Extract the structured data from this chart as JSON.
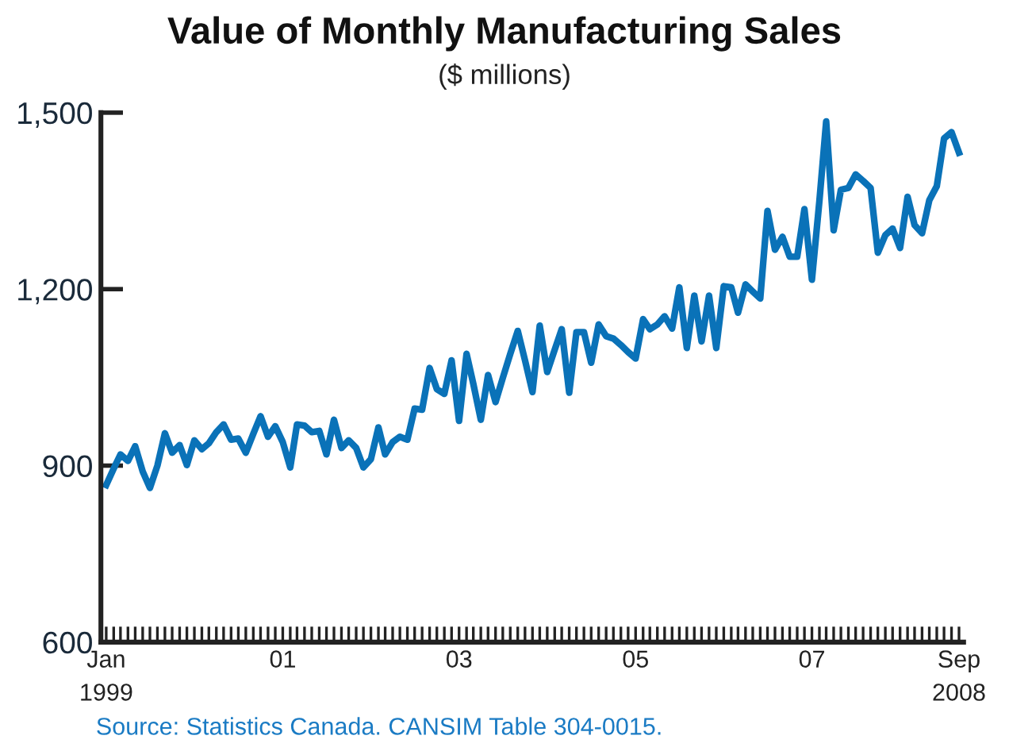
{
  "chart_data": {
    "type": "line",
    "title": "Value of Monthly Manufacturing Sales",
    "subtitle": "($ millions)",
    "annotations": [
      "Source: Statistics Canada. CANSIM Table 304-0015."
    ],
    "x": [
      "1999-01",
      "1999-02",
      "1999-03",
      "1999-04",
      "1999-05",
      "1999-06",
      "1999-07",
      "1999-08",
      "1999-09",
      "1999-10",
      "1999-11",
      "1999-12",
      "2000-01",
      "2000-02",
      "2000-03",
      "2000-04",
      "2000-05",
      "2000-06",
      "2000-07",
      "2000-08",
      "2000-09",
      "2000-10",
      "2000-11",
      "2000-12",
      "2001-01",
      "2001-02",
      "2001-03",
      "2001-04",
      "2001-05",
      "2001-06",
      "2001-07",
      "2001-08",
      "2001-09",
      "2001-10",
      "2001-11",
      "2001-12",
      "2002-01",
      "2002-02",
      "2002-03",
      "2002-04",
      "2002-05",
      "2002-06",
      "2002-07",
      "2002-08",
      "2002-09",
      "2002-10",
      "2002-11",
      "2002-12",
      "2003-01",
      "2003-02",
      "2003-03",
      "2003-04",
      "2003-05",
      "2003-06",
      "2003-07",
      "2003-08",
      "2003-09",
      "2003-10",
      "2003-11",
      "2003-12",
      "2004-01",
      "2004-02",
      "2004-03",
      "2004-04",
      "2004-05",
      "2004-06",
      "2004-07",
      "2004-08",
      "2004-09",
      "2004-10",
      "2004-11",
      "2004-12",
      "2005-01",
      "2005-02",
      "2005-03",
      "2005-04",
      "2005-05",
      "2005-06",
      "2005-07",
      "2005-08",
      "2005-09",
      "2005-10",
      "2005-11",
      "2005-12",
      "2006-01",
      "2006-02",
      "2006-03",
      "2006-04",
      "2006-05",
      "2006-06",
      "2006-07",
      "2006-08",
      "2006-09",
      "2006-10",
      "2006-11",
      "2006-12",
      "2007-01",
      "2007-02",
      "2007-03",
      "2007-04",
      "2007-05",
      "2007-06",
      "2007-07",
      "2007-08",
      "2007-09",
      "2007-10",
      "2007-11",
      "2007-12",
      "2008-01",
      "2008-02",
      "2008-03",
      "2008-04",
      "2008-05",
      "2008-06",
      "2008-07",
      "2008-08",
      "2008-09"
    ],
    "series": [
      {
        "color": "#0a72b8",
        "values": [
          867,
          895,
          919,
          908,
          933,
          890,
          862,
          900,
          955,
          922,
          935,
          901,
          943,
          928,
          938,
          957,
          970,
          944,
          946,
          922,
          954,
          984,
          949,
          967,
          940,
          897,
          970,
          968,
          957,
          959,
          919,
          978,
          930,
          943,
          930,
          897,
          911,
          965,
          919,
          940,
          949,
          944,
          997,
          995,
          1066,
          1030,
          1022,
          1079,
          976,
          1090,
          1039,
          978,
          1054,
          1008,
          1049,
          1090,
          1129,
          1079,
          1025,
          1138,
          1059,
          1097,
          1132,
          1024,
          1127,
          1127,
          1075,
          1140,
          1120,
          1116,
          1105,
          1093,
          1082,
          1149,
          1132,
          1140,
          1154,
          1133,
          1203,
          1100,
          1189,
          1111,
          1189,
          1100,
          1205,
          1203,
          1160,
          1208,
          1196,
          1184,
          1333,
          1267,
          1289,
          1255,
          1255,
          1336,
          1216,
          1350,
          1485,
          1300,
          1369,
          1372,
          1395,
          1384,
          1372,
          1262,
          1292,
          1303,
          1270,
          1357,
          1309,
          1295,
          1351,
          1375,
          1456,
          1467,
          1432
        ]
      }
    ],
    "xlim": [
      "1998-12-10",
      "2008-09-20"
    ],
    "xticks": [
      {
        "value": "1999-01",
        "label": "Jan\n1999"
      },
      {
        "value": "2001-01",
        "label": "01"
      },
      {
        "value": "2003-01",
        "label": "03"
      },
      {
        "value": "2005-01",
        "label": "05"
      },
      {
        "value": "2007-01",
        "label": "07"
      },
      {
        "value": "2008-09",
        "label": "Sep\n2008"
      }
    ],
    "ylim": [
      600,
      1500
    ],
    "yticks": [
      {
        "value": 600,
        "label": "600"
      },
      {
        "value": 900,
        "label": "900"
      },
      {
        "value": 1200,
        "label": "1,200"
      },
      {
        "value": 1500,
        "label": "1,500"
      }
    ],
    "grid": false,
    "legend": false,
    "line_style": "solid",
    "marker": "none"
  }
}
